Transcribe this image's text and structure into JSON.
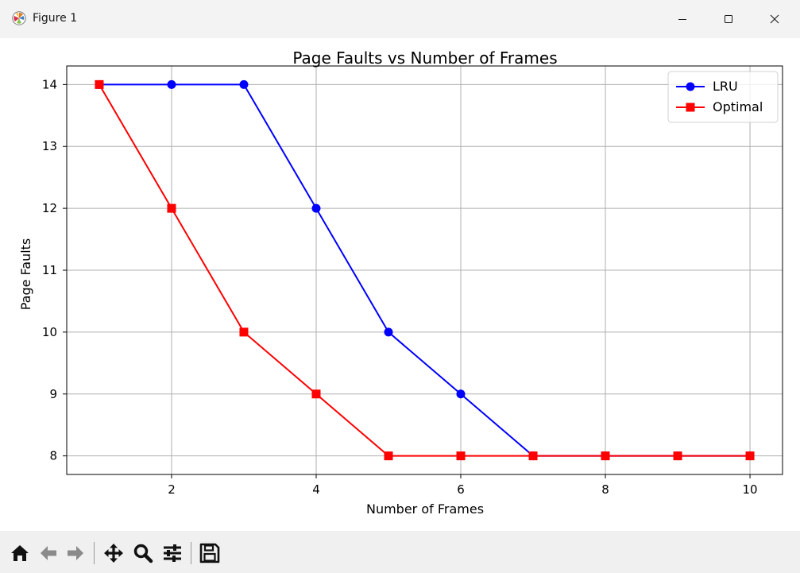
{
  "window": {
    "title": "Figure 1",
    "app_icon": "matplotlib-logo-icon",
    "minimize_icon": "minimize-icon",
    "maximize_icon": "maximize-icon",
    "close_icon": "close-icon"
  },
  "toolbar": {
    "items": [
      {
        "name": "home-icon"
      },
      {
        "name": "back-arrow-icon"
      },
      {
        "name": "forward-arrow-icon"
      },
      {
        "name": "pan-move-icon"
      },
      {
        "name": "zoom-magnifier-icon"
      },
      {
        "name": "configure-subplots-icon"
      },
      {
        "name": "save-floppy-icon"
      }
    ]
  },
  "chart_data": {
    "type": "line",
    "title": "Page Faults vs Number of Frames",
    "xlabel": "Number of Frames",
    "ylabel": "Page Faults",
    "x": [
      1,
      2,
      3,
      4,
      5,
      6,
      7,
      8,
      9,
      10
    ],
    "xlim": [
      0.55,
      10.45
    ],
    "ylim": [
      7.7,
      14.3
    ],
    "xticks": [
      2,
      4,
      6,
      8,
      10
    ],
    "yticks": [
      8,
      9,
      10,
      11,
      12,
      13,
      14
    ],
    "grid": true,
    "legend_position": "top-right",
    "series": [
      {
        "name": "LRU",
        "values": [
          14,
          14,
          14,
          12,
          10,
          9,
          8,
          8,
          8,
          8
        ],
        "color": "#0000ff",
        "marker": "circle"
      },
      {
        "name": "Optimal",
        "values": [
          14,
          12,
          10,
          9,
          8,
          8,
          8,
          8,
          8,
          8
        ],
        "color": "#ff0000",
        "marker": "square"
      }
    ]
  }
}
